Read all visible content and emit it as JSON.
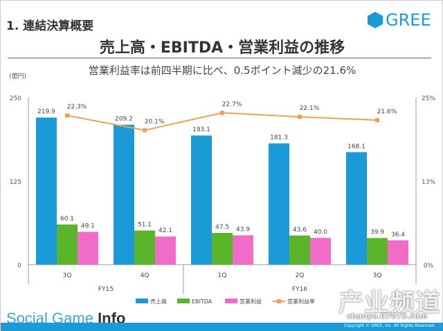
{
  "header": {
    "section": "1. 連結決算概要",
    "logo": "GREE",
    "title": "売上高・EBITDA・営業利益の推移",
    "subtitle": "営業利益率は前四半期に比べ、0.5ポイント減少の21.6%",
    "unit": "(億円)"
  },
  "footer": {
    "brand_light": "Social Game ",
    "brand_bold": "Info",
    "copyright": "Copyright © GREE, Inc. All Rights Reserved.",
    "watermark": "产业频道",
    "watermark_url": "chanye.07073.com"
  },
  "chart_data": {
    "type": "bar+line",
    "categories": [
      "3Q",
      "4Q",
      "1Q",
      "2Q",
      "3Q"
    ],
    "groups": [
      {
        "label": "FY15",
        "span": 2
      },
      {
        "label": "FY16",
        "span": 3
      }
    ],
    "series": [
      {
        "name": "売上高",
        "type": "bar",
        "color": "#1a9ad6",
        "values": [
          219.9,
          209.2,
          193.1,
          181.3,
          168.1
        ]
      },
      {
        "name": "EBITDA",
        "type": "bar",
        "color": "#5ab52a",
        "values": [
          60.1,
          51.1,
          47.5,
          43.6,
          39.9
        ]
      },
      {
        "name": "営業利益",
        "type": "bar",
        "color": "#f06cc6",
        "values": [
          49.1,
          42.1,
          43.9,
          40.0,
          36.4
        ]
      },
      {
        "name": "営業利益率",
        "type": "line",
        "axis": "right",
        "color": "#f0a050",
        "values": [
          22.3,
          20.1,
          22.7,
          22.1,
          21.6
        ],
        "labels": [
          "22.3%",
          "20.1%",
          "22.7%",
          "22.1%",
          "21.6%"
        ]
      }
    ],
    "y_left": {
      "range": [
        0,
        250
      ],
      "ticks": [
        "0",
        "125",
        "250"
      ]
    },
    "y_right": {
      "range": [
        0,
        25
      ],
      "ticks": [
        "0%",
        "13%",
        "25%"
      ]
    },
    "legend": "bottom"
  }
}
